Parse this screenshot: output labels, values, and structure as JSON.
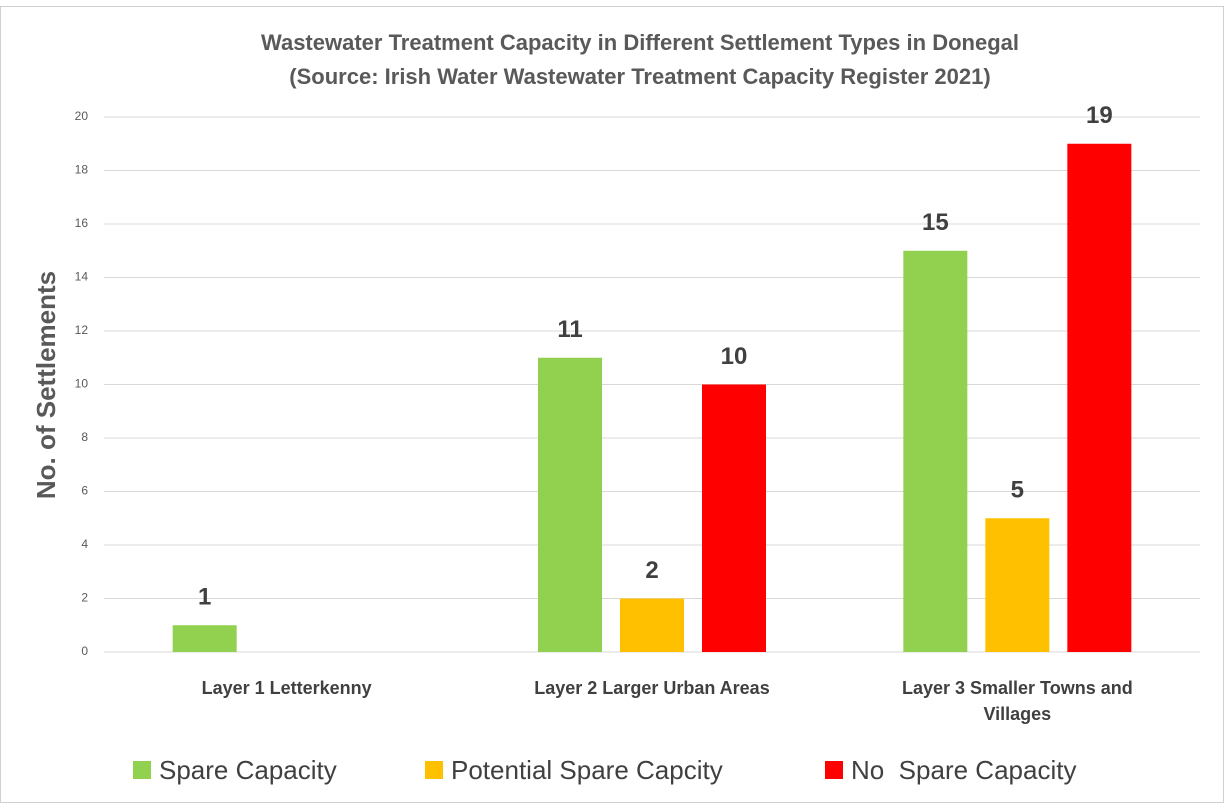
{
  "chart_data": {
    "type": "bar",
    "title": "Wastewater Treatment Capacity in Different Settlement Types in Donegal",
    "subtitle": "(Source: Irish Water Wastewater Treatment Capacity Register 2021)",
    "y_label": "No. of Settlements",
    "categories": [
      "Layer 1 Letterkenny",
      "Layer 2 Larger Urban Areas",
      "Layer 3 Smaller Towns and Villages"
    ],
    "series": [
      {
        "name": "Spare Capacity",
        "color": "#92d050",
        "values": [
          1,
          11,
          15
        ]
      },
      {
        "name": "Potential Spare Capcity",
        "color": "#ffc000",
        "values": [
          null,
          2,
          5
        ]
      },
      {
        "name": "No  Spare Capacity",
        "color": "#ff0000",
        "values": [
          null,
          10,
          19
        ]
      }
    ],
    "ylim": [
      0,
      20
    ],
    "yticks": [
      0,
      2,
      4,
      6,
      8,
      10,
      12,
      14,
      16,
      18,
      20
    ],
    "grid": true,
    "legend": "bottom"
  }
}
